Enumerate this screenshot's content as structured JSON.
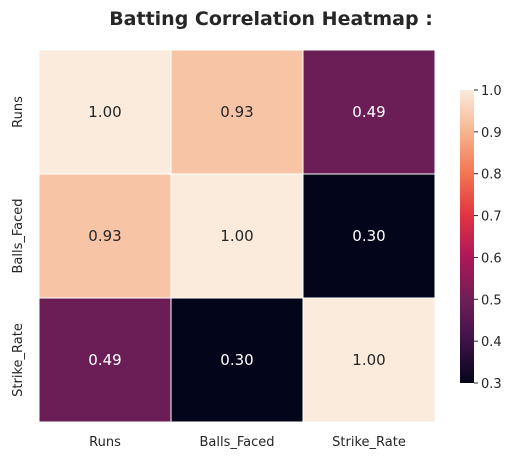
{
  "chart_data": {
    "type": "heatmap",
    "title": "Batting Correlation Heatmap :",
    "rows": [
      "Runs",
      "Balls_Faced",
      "Strike_Rate"
    ],
    "columns": [
      "Runs",
      "Balls_Faced",
      "Strike_Rate"
    ],
    "values": [
      [
        1.0,
        0.93,
        0.49
      ],
      [
        0.93,
        1.0,
        0.3
      ],
      [
        0.49,
        0.3,
        1.0
      ]
    ],
    "value_labels": [
      [
        "1.00",
        "0.93",
        "0.49"
      ],
      [
        "0.93",
        "1.00",
        "0.30"
      ],
      [
        "0.49",
        "0.30",
        "1.00"
      ]
    ],
    "colorbar": {
      "range": [
        0.3,
        1.0
      ],
      "ticks": [
        0.3,
        0.4,
        0.5,
        0.6,
        0.7,
        0.8,
        0.9,
        1.0
      ],
      "tick_labels": [
        "0.3",
        "0.4",
        "0.5",
        "0.6",
        "0.7",
        "0.8",
        "0.9",
        "1.0"
      ],
      "colormap": "rocket",
      "colormap_stops": [
        "#03051a",
        "#3d1248",
        "#701f57",
        "#ad1759",
        "#e13342",
        "#f37651",
        "#f6b48f",
        "#faebdd"
      ]
    }
  }
}
